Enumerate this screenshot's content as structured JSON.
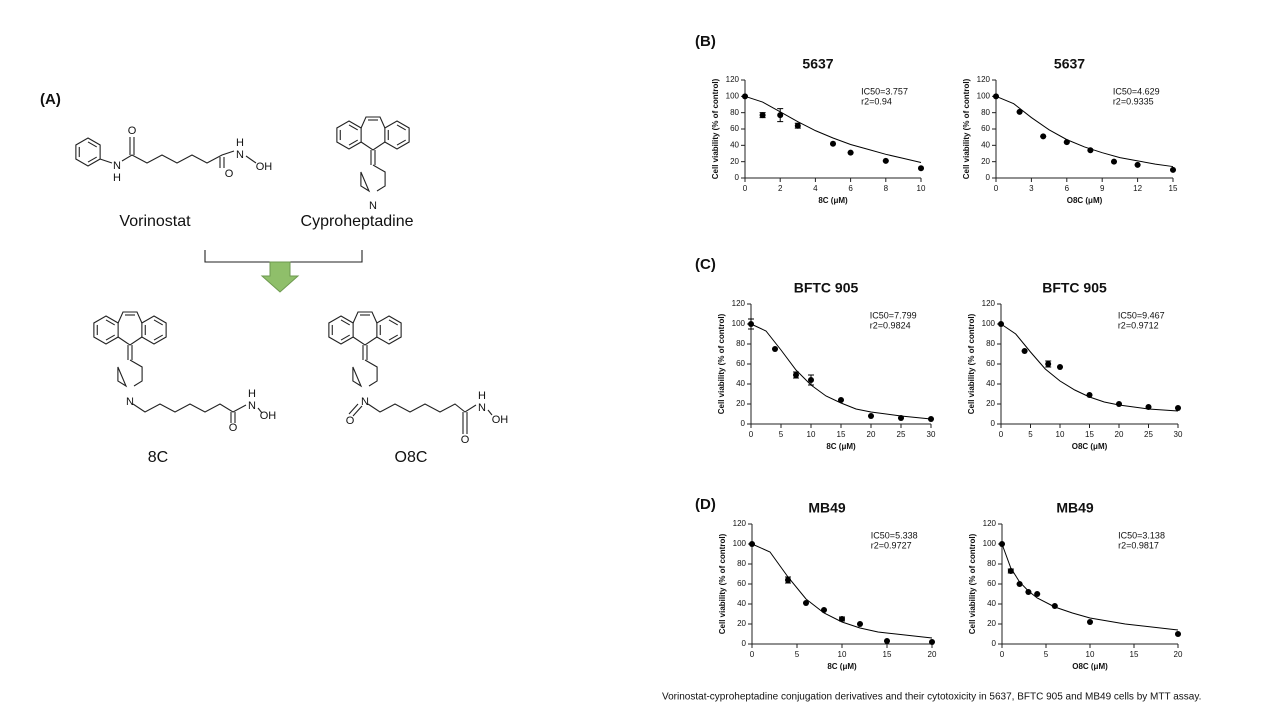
{
  "panel_labels": [
    "(A)",
    "(B)",
    "(C)",
    "(D)"
  ],
  "structures": [
    {
      "label": "Vorinostat",
      "atoms": [
        "N",
        "H",
        "O",
        "H",
        "N",
        "OH",
        "O"
      ]
    },
    {
      "label": "Cyproheptadine",
      "atoms": [
        "N"
      ]
    },
    {
      "label": "8C",
      "atoms": [
        "N",
        "H",
        "N",
        "OH",
        "O"
      ]
    },
    {
      "label": "O8C",
      "atoms": [
        "N",
        "O",
        "H",
        "N",
        "OH",
        "O"
      ]
    }
  ],
  "caption": "Vorinostat-cyproheptadine conjugation derivatives and their cytotoxicity in 5637, BFTC 905 and MB49 cells by MTT assay.",
  "chart_data": [
    {
      "type": "scatter",
      "title": "5637",
      "title_color": "#2e5a87",
      "annotations": [
        "IC50=3.757",
        "r2=0.94"
      ],
      "xlabel": "8C (μM)",
      "ylabel": "Cell viability (% of control)",
      "color": "#000000",
      "x": [
        0,
        1,
        2,
        3,
        5,
        6,
        8,
        10
      ],
      "values": [
        100,
        77,
        77,
        64,
        42,
        31,
        21,
        12
      ],
      "errors": [
        0,
        3,
        8,
        3,
        0,
        0,
        0,
        0
      ],
      "fit": {
        "x": [
          0,
          1,
          2,
          3,
          4,
          5,
          6,
          7,
          8,
          9,
          10
        ],
        "values": [
          100,
          93,
          81,
          69,
          58,
          49,
          41,
          35,
          29,
          24,
          19
        ]
      },
      "xlim": [
        0,
        10
      ],
      "xticks": [
        0,
        2,
        4,
        6,
        8,
        10
      ],
      "ylim": [
        0,
        120
      ],
      "yticks": [
        0,
        20,
        40,
        60,
        80,
        100,
        120
      ]
    },
    {
      "type": "scatter",
      "title": "5637",
      "title_color": "#2e5a87",
      "annotations": [
        "IC50=4.629",
        "r2=0.9335"
      ],
      "xlabel": "O8C (μM)",
      "ylabel": "Cell viability (% of control)",
      "color": "#000000",
      "x": [
        0,
        2,
        4,
        6,
        8,
        10,
        12,
        15
      ],
      "values": [
        100,
        81,
        51,
        44,
        34,
        20,
        16,
        10
      ],
      "errors": [
        0,
        0,
        0,
        0,
        0,
        0,
        0,
        0
      ],
      "fit": {
        "x": [
          0,
          1.5,
          3,
          4.5,
          6,
          7.5,
          9,
          10.5,
          12,
          13.5,
          15
        ],
        "values": [
          100,
          91,
          74,
          59,
          47,
          38,
          31,
          25,
          21,
          17,
          14
        ]
      },
      "xlim": [
        0,
        15
      ],
      "xticks": [
        0,
        3,
        6,
        9,
        12,
        15
      ],
      "ylim": [
        0,
        120
      ],
      "yticks": [
        0,
        20,
        40,
        60,
        80,
        100,
        120
      ]
    },
    {
      "type": "scatter",
      "title": "BFTC 905",
      "title_color": "#2e5a87",
      "annotations": [
        "IC50=7.799",
        "r2=0.9824"
      ],
      "xlabel": "8C (μM)",
      "ylabel": "Cell viability (% of control)",
      "color": "#000000",
      "x": [
        0,
        4,
        7.5,
        10,
        15,
        20,
        25,
        30
      ],
      "values": [
        100,
        75,
        49,
        44,
        24,
        8,
        6,
        5
      ],
      "errors": [
        5,
        0,
        3,
        5,
        0,
        0,
        0,
        0
      ],
      "fit": {
        "x": [
          0,
          2.5,
          5,
          7.5,
          10,
          12.5,
          15,
          17.5,
          20,
          25,
          30
        ],
        "values": [
          100,
          93,
          74,
          54,
          39,
          28,
          21,
          15,
          12,
          8,
          5
        ]
      },
      "xlim": [
        0,
        30
      ],
      "xticks": [
        0,
        5,
        10,
        15,
        20,
        25,
        30
      ],
      "ylim": [
        0,
        120
      ],
      "yticks": [
        0,
        20,
        40,
        60,
        80,
        100,
        120
      ]
    },
    {
      "type": "scatter",
      "title": "BFTC 905",
      "title_color": "#2e5a87",
      "annotations": [
        "IC50=9.467",
        "r2=0.9712"
      ],
      "xlabel": "O8C (μM)",
      "ylabel": "Cell viability (% of control)",
      "color": "#000000",
      "x": [
        0,
        4,
        8,
        10,
        15,
        20,
        25,
        30
      ],
      "values": [
        100,
        73,
        60,
        57,
        29,
        20,
        17,
        16
      ],
      "errors": [
        0,
        0,
        3,
        0,
        0,
        0,
        0,
        0
      ],
      "fit": {
        "x": [
          0,
          2.5,
          5,
          7.5,
          10,
          12.5,
          15,
          17.5,
          20,
          25,
          30
        ],
        "values": [
          100,
          90,
          72,
          55,
          43,
          34,
          27,
          22,
          19,
          15,
          13
        ]
      },
      "xlim": [
        0,
        30
      ],
      "xticks": [
        0,
        5,
        10,
        15,
        20,
        25,
        30
      ],
      "ylim": [
        0,
        120
      ],
      "yticks": [
        0,
        20,
        40,
        60,
        80,
        100,
        120
      ]
    },
    {
      "type": "scatter",
      "title": "MB49",
      "title_color": "#2e5a87",
      "annotations": [
        "IC50=5.338",
        "r2=0.9727"
      ],
      "xlabel": "8C (μM)",
      "ylabel": "Cell viability (% of control)",
      "color": "#000000",
      "x": [
        0,
        4,
        6,
        8,
        10,
        12,
        15,
        20
      ],
      "values": [
        100,
        64,
        41,
        34,
        25,
        20,
        3,
        2
      ],
      "errors": [
        0,
        3,
        0,
        0,
        2,
        0,
        0,
        0
      ],
      "fit": {
        "x": [
          0,
          2,
          4,
          6,
          8,
          10,
          12,
          14,
          16,
          18,
          20
        ],
        "values": [
          100,
          92,
          67,
          45,
          31,
          22,
          16,
          12,
          10,
          8,
          6
        ]
      },
      "xlim": [
        0,
        20
      ],
      "xticks": [
        0,
        5,
        10,
        15,
        20
      ],
      "ylim": [
        0,
        120
      ],
      "yticks": [
        0,
        20,
        40,
        60,
        80,
        100,
        120
      ]
    },
    {
      "type": "scatter",
      "title": "MB49",
      "title_color": "#2e5a87",
      "annotations": [
        "IC50=3.138",
        "r2=0.9817"
      ],
      "xlabel": "O8C (μM)",
      "ylabel": "Cell viability (% of control)",
      "color": "#000000",
      "x": [
        0,
        1,
        2,
        3,
        4,
        6,
        10,
        20
      ],
      "values": [
        100,
        73,
        60,
        52,
        50,
        38,
        22,
        10
      ],
      "errors": [
        0,
        2,
        0,
        0,
        0,
        0,
        0,
        0
      ],
      "fit": {
        "x": [
          0,
          1,
          2,
          3,
          4,
          6,
          8,
          10,
          14,
          20
        ],
        "values": [
          100,
          76,
          62,
          53,
          46,
          37,
          31,
          26,
          20,
          14
        ]
      },
      "xlim": [
        0,
        20
      ],
      "xticks": [
        0,
        5,
        10,
        15,
        20
      ],
      "ylim": [
        0,
        120
      ],
      "yticks": [
        0,
        20,
        40,
        60,
        80,
        100,
        120
      ]
    }
  ]
}
